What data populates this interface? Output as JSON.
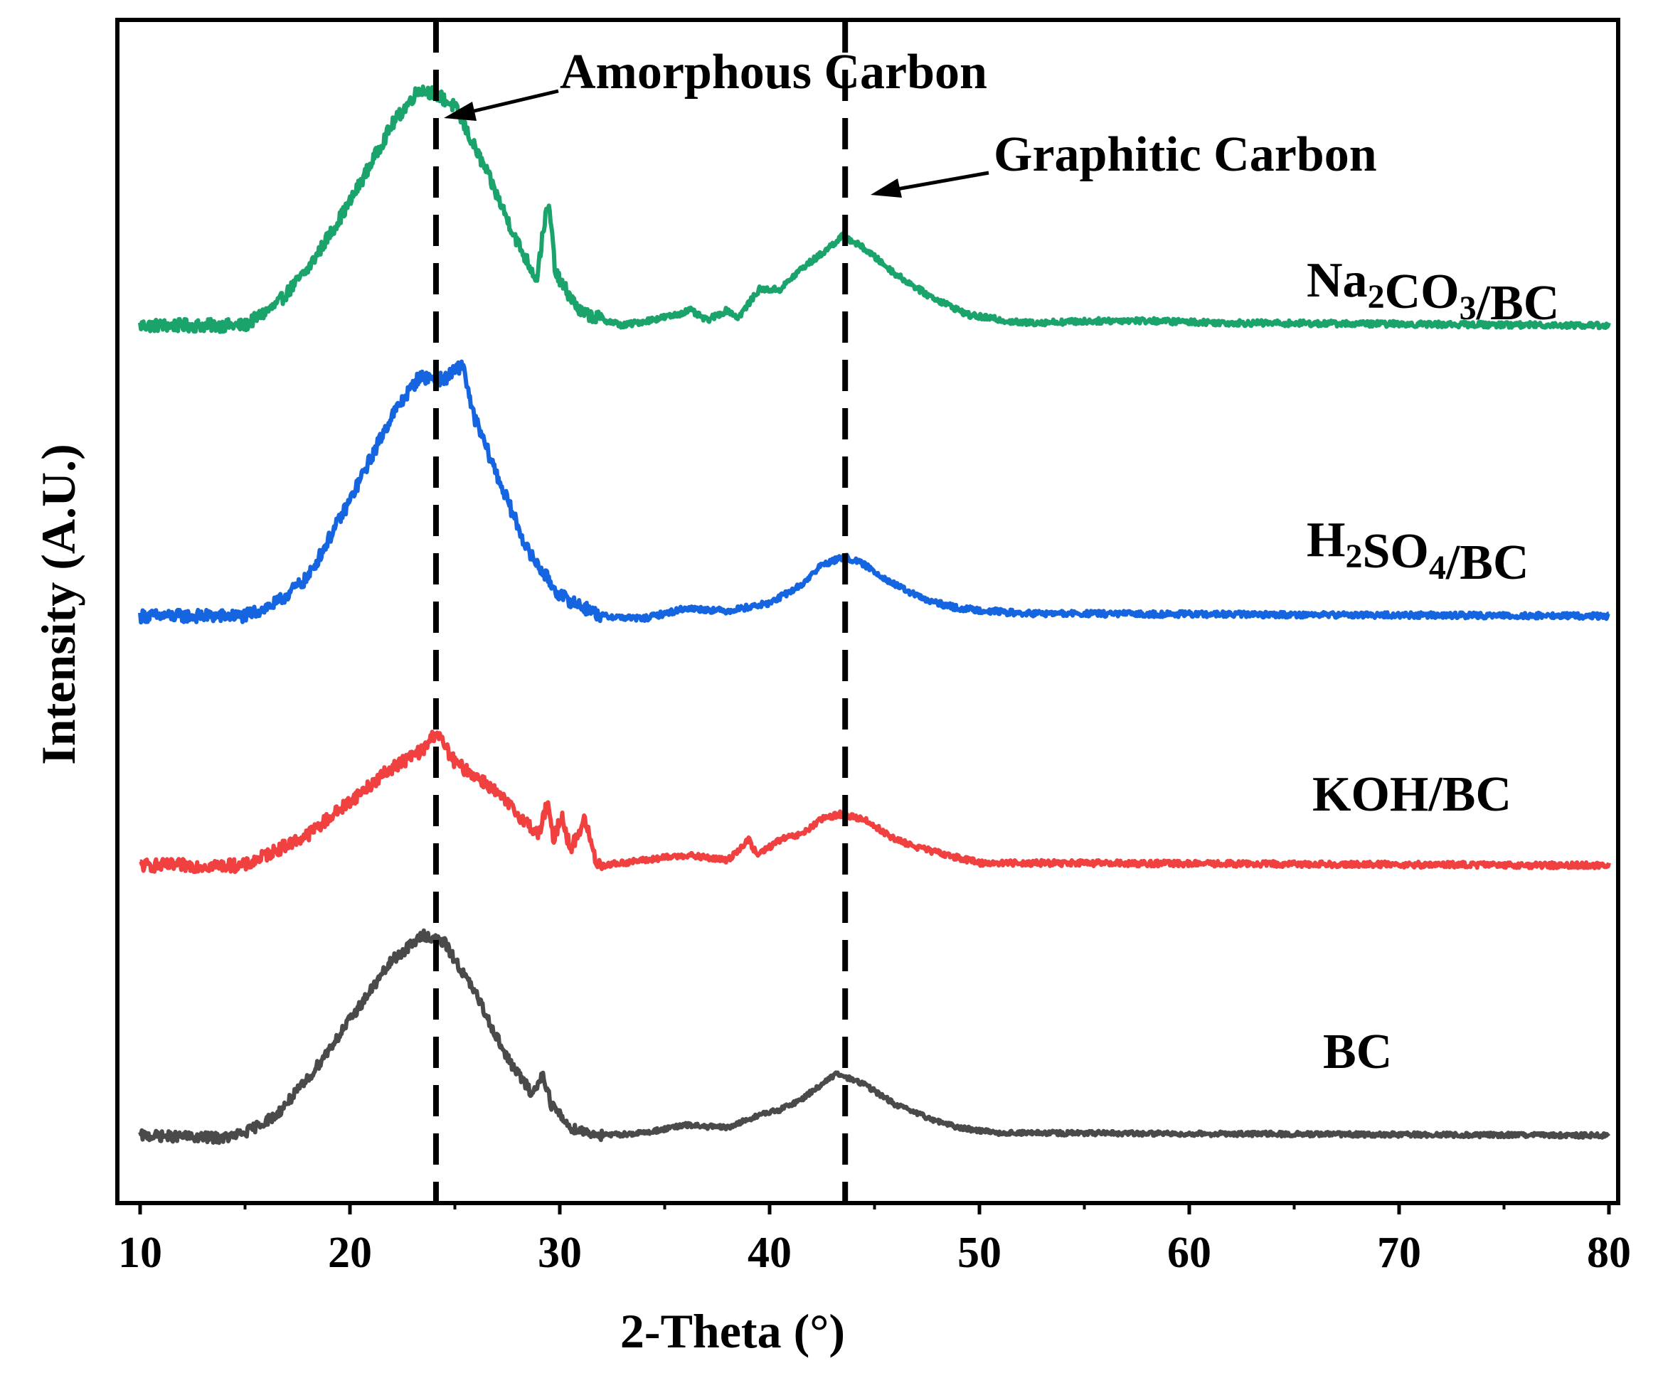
{
  "chart_data": {
    "type": "line",
    "xlabel": "2-Theta (°)",
    "ylabel": "Intensity (A.U.)",
    "xlim": [
      10,
      80
    ],
    "x_ticks": [
      "10",
      "20",
      "30",
      "40",
      "50",
      "60",
      "70",
      "80"
    ],
    "y_ticks": [],
    "grid": false,
    "legend": "none",
    "stacked_offset": true,
    "reference_lines": [
      {
        "x": 24.1,
        "label": "Amorphous Carbon"
      },
      {
        "x": 43.6,
        "label": "Graphitic Carbon"
      }
    ],
    "annotations": [
      {
        "text": "Amorphous Carbon",
        "points_to_x": 24.1
      },
      {
        "text": "Graphitic Carbon",
        "points_to_x": 43.6
      }
    ],
    "series": [
      {
        "name": "Na2CO3/BC",
        "label_parts": [
          {
            "t": "Na"
          },
          {
            "t": "2",
            "sub": true
          },
          {
            "t": "CO"
          },
          {
            "t": "3",
            "sub": true
          },
          {
            "t": "/BC"
          }
        ],
        "color": "#1aa36a",
        "baseline": 3.15,
        "noise": 0.025,
        "points": [
          [
            10,
            0.0
          ],
          [
            15,
            0.0
          ],
          [
            16.5,
            0.08
          ],
          [
            18,
            0.22
          ],
          [
            20,
            0.48
          ],
          [
            22,
            0.78
          ],
          [
            23.3,
            0.92
          ],
          [
            24.1,
            0.9
          ],
          [
            25,
            0.85
          ],
          [
            26.5,
            0.6
          ],
          [
            28,
            0.32
          ],
          [
            28.9,
            0.18
          ],
          [
            29.3,
            0.42
          ],
          [
            29.5,
            0.46
          ],
          [
            29.8,
            0.2
          ],
          [
            31,
            0.05
          ],
          [
            33,
            0.0
          ],
          [
            35.5,
            0.04
          ],
          [
            36.2,
            0.06
          ],
          [
            37,
            0.02
          ],
          [
            38,
            0.06
          ],
          [
            38.5,
            0.03
          ],
          [
            39.5,
            0.14
          ],
          [
            40.5,
            0.14
          ],
          [
            41.5,
            0.22
          ],
          [
            42.5,
            0.28
          ],
          [
            43.5,
            0.35
          ],
          [
            44.5,
            0.3
          ],
          [
            46,
            0.2
          ],
          [
            47.5,
            0.12
          ],
          [
            48.5,
            0.08
          ],
          [
            49.5,
            0.04
          ],
          [
            52,
            0.01
          ],
          [
            57,
            0.02
          ],
          [
            62,
            0.01
          ],
          [
            80,
            0.0
          ]
        ]
      },
      {
        "name": "H2SO4/BC",
        "label_parts": [
          {
            "t": "H"
          },
          {
            "t": "2",
            "sub": true
          },
          {
            "t": "SO"
          },
          {
            "t": "4",
            "sub": true
          },
          {
            "t": "/BC"
          }
        ],
        "color": "#1565e0",
        "baseline": 2.02,
        "noise": 0.025,
        "points": [
          [
            10,
            0.0
          ],
          [
            15,
            0.0
          ],
          [
            16.5,
            0.05
          ],
          [
            18,
            0.15
          ],
          [
            20,
            0.45
          ],
          [
            22,
            0.78
          ],
          [
            23.3,
            0.93
          ],
          [
            24.5,
            0.92
          ],
          [
            25.4,
            0.98
          ],
          [
            25.8,
            0.8
          ],
          [
            27,
            0.55
          ],
          [
            28.5,
            0.25
          ],
          [
            30,
            0.08
          ],
          [
            32,
            0.0
          ],
          [
            34,
            -0.01
          ],
          [
            36,
            0.03
          ],
          [
            38,
            0.02
          ],
          [
            40,
            0.05
          ],
          [
            41.5,
            0.12
          ],
          [
            42.5,
            0.2
          ],
          [
            43.6,
            0.23
          ],
          [
            44.5,
            0.2
          ],
          [
            46,
            0.12
          ],
          [
            47.5,
            0.06
          ],
          [
            49,
            0.03
          ],
          [
            52,
            0.01
          ],
          [
            80,
            0.0
          ]
        ]
      },
      {
        "name": "KOH/BC",
        "label_parts": [
          {
            "t": "KOH/BC"
          }
        ],
        "color": "#f04040",
        "baseline": 1.05,
        "noise": 0.025,
        "points": [
          [
            10,
            0.0
          ],
          [
            15,
            0.0
          ],
          [
            16.5,
            0.06
          ],
          [
            18,
            0.12
          ],
          [
            20,
            0.25
          ],
          [
            22,
            0.38
          ],
          [
            23.5,
            0.45
          ],
          [
            24.1,
            0.52
          ],
          [
            25,
            0.4
          ],
          [
            26.5,
            0.32
          ],
          [
            28,
            0.2
          ],
          [
            29,
            0.12
          ],
          [
            29.4,
            0.24
          ],
          [
            29.7,
            0.1
          ],
          [
            30.1,
            0.2
          ],
          [
            30.5,
            0.06
          ],
          [
            31.2,
            0.18
          ],
          [
            31.7,
            0.02
          ],
          [
            32,
            0.0
          ],
          [
            34,
            0.02
          ],
          [
            36,
            0.04
          ],
          [
            38,
            0.02
          ],
          [
            39,
            0.1
          ],
          [
            39.4,
            0.04
          ],
          [
            40.5,
            0.1
          ],
          [
            41.5,
            0.12
          ],
          [
            42.5,
            0.18
          ],
          [
            43.3,
            0.2
          ],
          [
            44.5,
            0.18
          ],
          [
            46,
            0.1
          ],
          [
            47.5,
            0.06
          ],
          [
            48.5,
            0.04
          ],
          [
            50,
            0.01
          ],
          [
            52,
            0.01
          ],
          [
            80,
            0.0
          ]
        ]
      },
      {
        "name": "BC",
        "label_parts": [
          {
            "t": "BC"
          }
        ],
        "color": "#4a4a4a",
        "baseline": 0.0,
        "noise": 0.02,
        "points": [
          [
            10,
            0.0
          ],
          [
            14,
            -0.01
          ],
          [
            15,
            0.01
          ],
          [
            16.5,
            0.08
          ],
          [
            18,
            0.22
          ],
          [
            20,
            0.45
          ],
          [
            22,
            0.68
          ],
          [
            23.5,
            0.78
          ],
          [
            24.5,
            0.75
          ],
          [
            26,
            0.55
          ],
          [
            27.5,
            0.3
          ],
          [
            28.7,
            0.16
          ],
          [
            29.2,
            0.24
          ],
          [
            29.6,
            0.12
          ],
          [
            30.5,
            0.03
          ],
          [
            32,
            0.0
          ],
          [
            34,
            0.01
          ],
          [
            36,
            0.04
          ],
          [
            38,
            0.03
          ],
          [
            39.5,
            0.08
          ],
          [
            40.5,
            0.1
          ],
          [
            41.5,
            0.14
          ],
          [
            42.5,
            0.2
          ],
          [
            43.2,
            0.24
          ],
          [
            44.5,
            0.2
          ],
          [
            46,
            0.12
          ],
          [
            47.5,
            0.07
          ],
          [
            49,
            0.03
          ],
          [
            51,
            0.01
          ],
          [
            80,
            0.0
          ]
        ]
      }
    ]
  }
}
